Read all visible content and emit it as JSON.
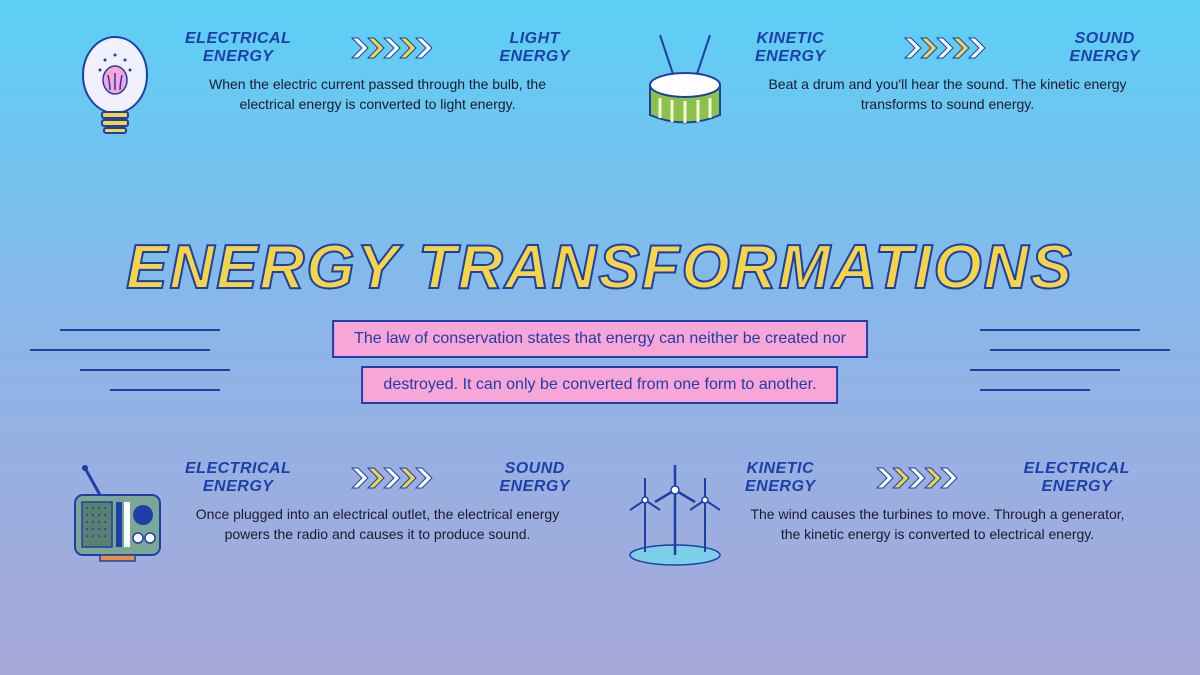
{
  "title": "ENERGY TRANSFORMATIONS",
  "subtitle_line1": "The law of conservation states that energy can neither be created nor",
  "subtitle_line2": "destroyed. It can only be converted from one form to another.",
  "colors": {
    "title_fill": "#f5d547",
    "title_stroke": "#1e3fa8",
    "label_color": "#1e3fa8",
    "subtitle_bg": "#f8a5d8",
    "subtitle_border": "#1e3fa8",
    "chevron_white": "#ffffff",
    "chevron_yellow": "#f5d547",
    "bg_top": "#5bd0f5",
    "bg_bottom": "#a8a8d8"
  },
  "cards": [
    {
      "from": "ELECTRICAL ENERGY",
      "to": "LIGHT ENERGY",
      "description": "When the electric current passed through the bulb, the electrical energy is converted to light energy.",
      "icon": "lightbulb"
    },
    {
      "from": "KINETIC ENERGY",
      "to": "SOUND ENERGY",
      "description": "Beat a drum and you'll hear the sound. The kinetic energy transforms to sound energy.",
      "icon": "drum"
    },
    {
      "from": "ELECTRICAL ENERGY",
      "to": "SOUND ENERGY",
      "description": "Once plugged into an electrical outlet, the electrical energy powers the radio and causes it to produce sound.",
      "icon": "radio"
    },
    {
      "from": "KINETIC ENERGY",
      "to": "ELECTRICAL ENERGY",
      "description": "The wind causes the turbines to move. Through a generator, the kinetic energy is converted to electrical energy.",
      "icon": "turbine"
    }
  ]
}
